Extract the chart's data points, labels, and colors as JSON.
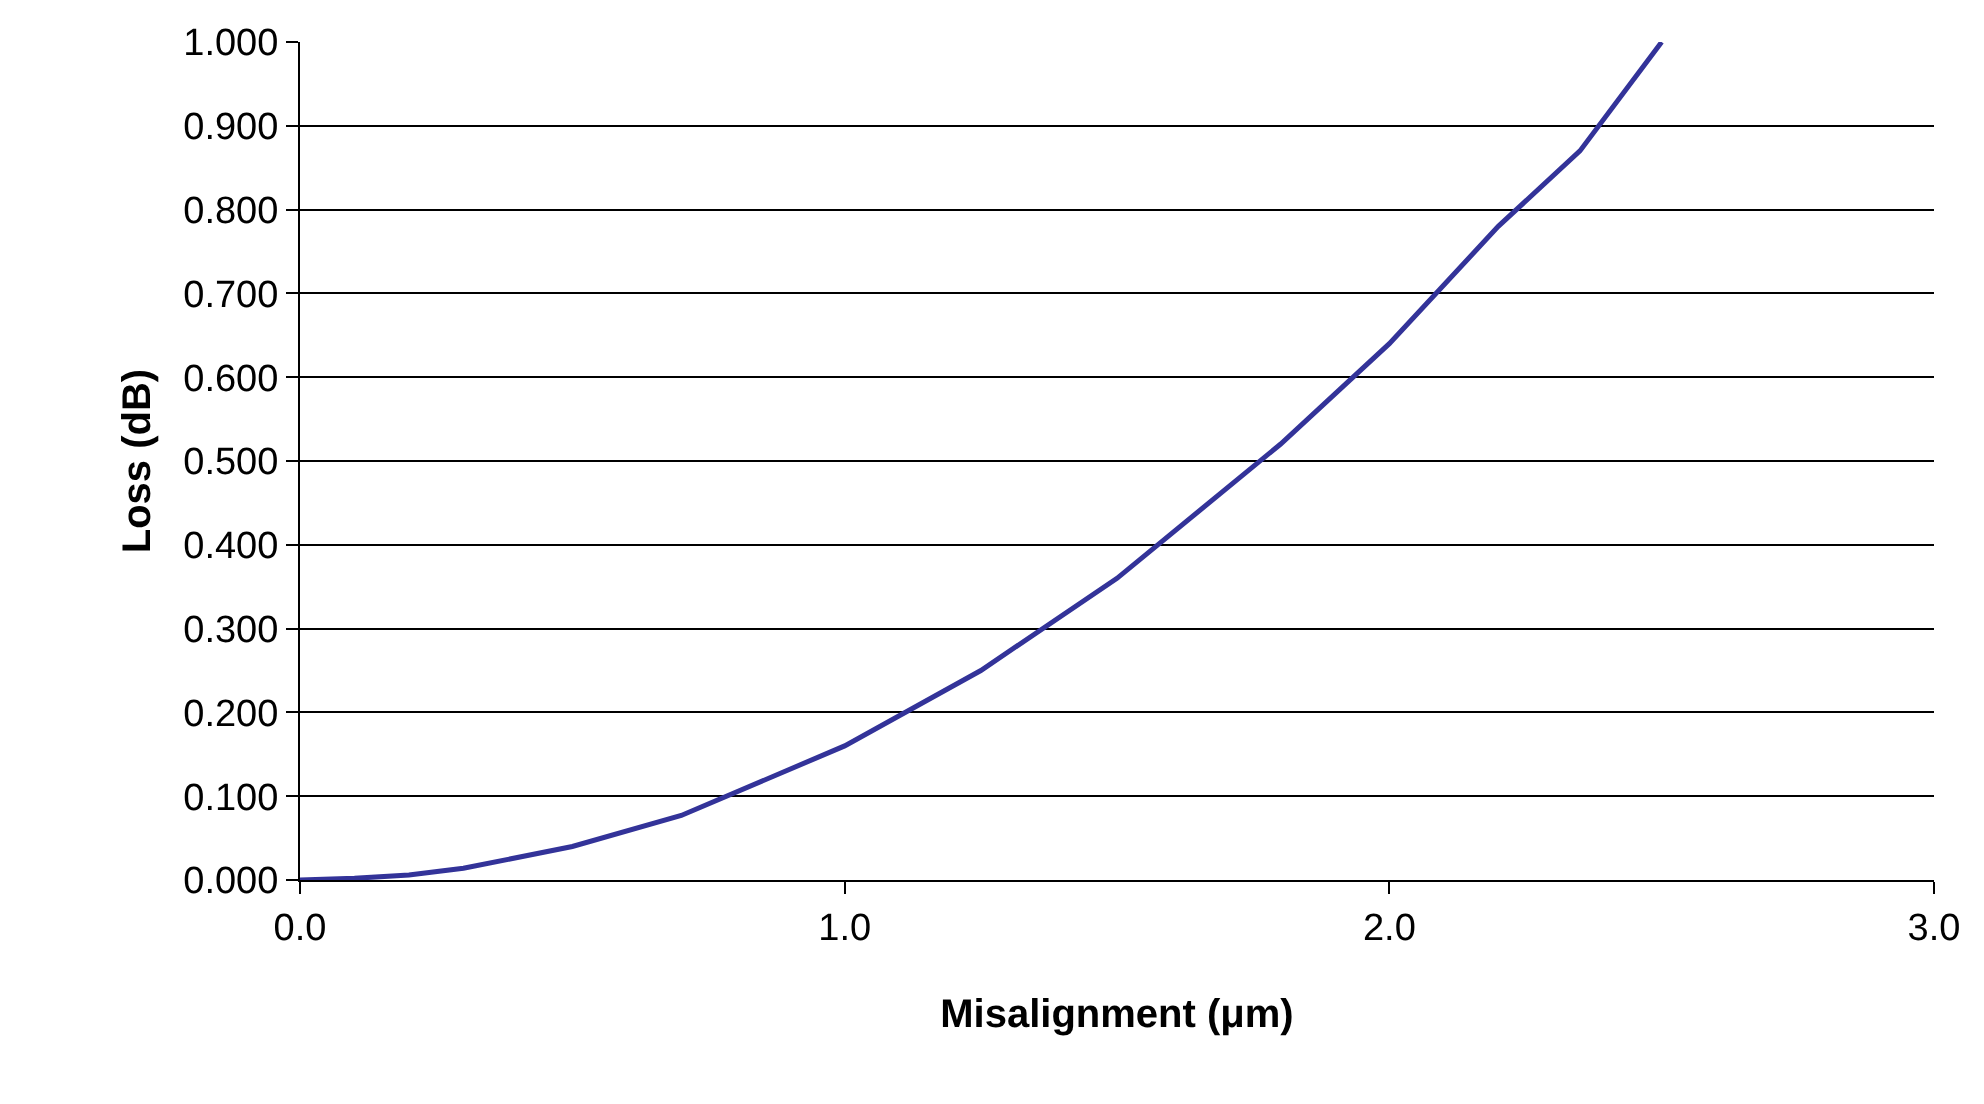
{
  "chart_data": {
    "type": "line",
    "xlabel": "Misalignment (μm)",
    "ylabel": "Loss (dB)",
    "series": [
      {
        "color": "#333399",
        "x": [
          0,
          0.1,
          0.2,
          0.3,
          0.5,
          0.7,
          1.0,
          1.25,
          1.5,
          1.8,
          2.0,
          2.2,
          2.35,
          2.5
        ],
        "values": [
          0,
          0.002,
          0.006,
          0.014,
          0.04,
          0.077,
          0.16,
          0.25,
          0.36,
          0.52,
          0.64,
          0.78,
          0.87,
          1.0
        ]
      }
    ],
    "xlim": [
      0,
      3
    ],
    "xticks": [
      {
        "value": 0,
        "label": "0.0"
      },
      {
        "value": 1,
        "label": "1.0"
      },
      {
        "value": 2,
        "label": "2.0"
      },
      {
        "value": 3,
        "label": "3.0"
      }
    ],
    "ylim": [
      0,
      1
    ],
    "yticks": [
      {
        "value": 0,
        "label": "0.000"
      },
      {
        "value": 0.1,
        "label": "0.100"
      },
      {
        "value": 0.2,
        "label": "0.200"
      },
      {
        "value": 0.3,
        "label": "0.300"
      },
      {
        "value": 0.4,
        "label": "0.400"
      },
      {
        "value": 0.5,
        "label": "0.500"
      },
      {
        "value": 0.6,
        "label": "0.600"
      },
      {
        "value": 0.7,
        "label": "0.700"
      },
      {
        "value": 0.8,
        "label": "0.800"
      },
      {
        "value": 0.9,
        "label": "0.900"
      },
      {
        "value": 1,
        "label": "1.000"
      }
    ],
    "grid": "y",
    "legend": false,
    "marker": "none",
    "line_style": "solid"
  }
}
